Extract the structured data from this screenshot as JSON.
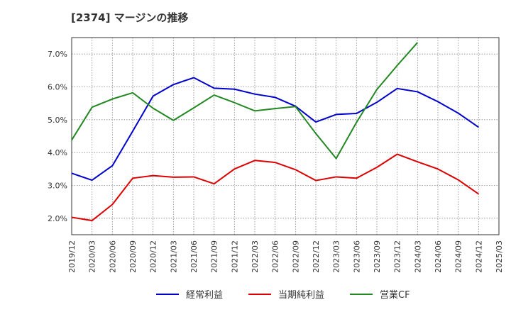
{
  "chart_data": {
    "type": "line",
    "title": "[2374]  マージンの推移",
    "xlabel": "",
    "ylabel": "",
    "x": [
      "2019/12",
      "2020/03",
      "2020/06",
      "2020/09",
      "2020/12",
      "2021/03",
      "2021/06",
      "2021/09",
      "2021/12",
      "2022/03",
      "2022/06",
      "2022/09",
      "2022/12",
      "2023/03",
      "2023/06",
      "2023/09",
      "2023/12",
      "2024/03",
      "2024/06",
      "2024/09",
      "2024/12",
      "2025/03"
    ],
    "ylim": [
      1.5,
      7.5
    ],
    "yticks": [
      2.0,
      3.0,
      4.0,
      5.0,
      6.0,
      7.0
    ],
    "ytick_labels": [
      "2.0%",
      "3.0%",
      "4.0%",
      "5.0%",
      "6.0%",
      "7.0%"
    ],
    "grid": true,
    "legend_position": "bottom",
    "series": [
      {
        "name": "経常利益",
        "color": "#0000cc",
        "values": [
          3.37,
          3.16,
          3.6,
          4.65,
          5.72,
          6.07,
          6.28,
          5.96,
          5.93,
          5.78,
          5.68,
          5.41,
          4.93,
          5.16,
          5.19,
          5.53,
          5.95,
          5.85,
          5.55,
          5.2,
          4.77,
          null
        ]
      },
      {
        "name": "当期純利益",
        "color": "#dd0000",
        "values": [
          2.03,
          1.93,
          2.42,
          3.22,
          3.3,
          3.25,
          3.26,
          3.05,
          3.5,
          3.76,
          3.7,
          3.48,
          3.15,
          3.26,
          3.22,
          3.55,
          3.95,
          3.72,
          3.5,
          3.17,
          2.74,
          null
        ]
      },
      {
        "name": "営業CF",
        "color": "#228822",
        "values": [
          4.38,
          5.38,
          5.63,
          5.82,
          5.35,
          4.98,
          5.36,
          5.75,
          5.52,
          5.27,
          5.34,
          5.4,
          4.58,
          3.82,
          4.92,
          5.92,
          6.65,
          7.35,
          null,
          null,
          null,
          null
        ]
      }
    ]
  }
}
